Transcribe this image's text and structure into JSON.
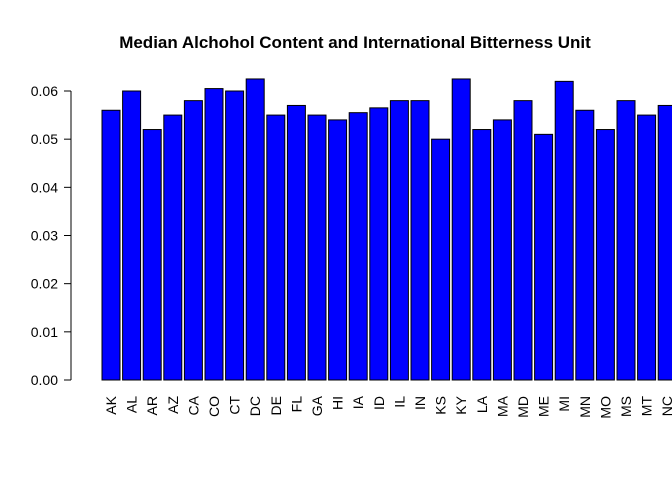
{
  "chart_data": {
    "type": "bar",
    "title": "Median Alchohol Content and International Bitterness Unit",
    "xlabel": "",
    "ylabel": "",
    "ylim": [
      0,
      0.065
    ],
    "y_ticks": [
      "0.00",
      "0.01",
      "0.02",
      "0.03",
      "0.04",
      "0.05",
      "0.06"
    ],
    "bar_color": "#0000ff",
    "categories": [
      "AK",
      "AL",
      "AR",
      "AZ",
      "CA",
      "CO",
      "CT",
      "DC",
      "DE",
      "FL",
      "GA",
      "HI",
      "IA",
      "ID",
      "IL",
      "IN",
      "KS",
      "KY",
      "LA",
      "MA",
      "MD",
      "ME",
      "MI",
      "MN",
      "MO",
      "MS",
      "MT",
      "NC"
    ],
    "values": [
      0.056,
      0.06,
      0.052,
      0.055,
      0.058,
      0.0605,
      0.06,
      0.0625,
      0.055,
      0.057,
      0.055,
      0.054,
      0.0555,
      0.0565,
      0.058,
      0.058,
      0.05,
      0.0625,
      0.052,
      0.054,
      0.058,
      0.051,
      0.062,
      0.056,
      0.052,
      0.058,
      0.055,
      0.057
    ]
  }
}
